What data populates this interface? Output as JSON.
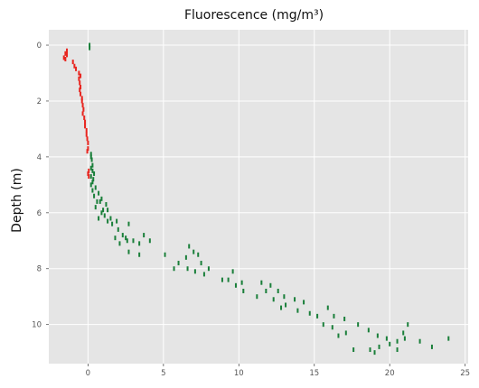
{
  "chart_data": {
    "type": "scatter",
    "title": "Fluorescence (mg/m³)",
    "xlabel": "",
    "ylabel": "Depth (m)",
    "xlim": [
      -2.6,
      25.2
    ],
    "ylim": [
      11.4,
      -0.55
    ],
    "y_inverted": true,
    "x_ticks": [
      0,
      5,
      10,
      15,
      20,
      25
    ],
    "y_ticks": [
      0,
      2,
      4,
      6,
      8,
      10
    ],
    "grid": true,
    "colors": {
      "plot_bg": "#e5e5e5",
      "grid": "#ffffff",
      "red": "#e8251f",
      "green": "#1a7f3a"
    },
    "series": [
      {
        "color": "#e8251f",
        "points": [
          [
            -1.4,
            0.2
          ],
          [
            -1.5,
            0.3
          ],
          [
            -1.4,
            0.35
          ],
          [
            -1.6,
            0.45
          ],
          [
            -1.5,
            0.5
          ],
          [
            -1.0,
            0.6
          ],
          [
            -0.9,
            0.75
          ],
          [
            -0.8,
            0.85
          ],
          [
            -0.6,
            1.0
          ],
          [
            -0.5,
            1.1
          ],
          [
            -0.6,
            1.2
          ],
          [
            -0.55,
            1.35
          ],
          [
            -0.5,
            1.5
          ],
          [
            -0.55,
            1.6
          ],
          [
            -0.5,
            1.75
          ],
          [
            -0.4,
            1.9
          ],
          [
            -0.4,
            2.0
          ],
          [
            -0.35,
            2.15
          ],
          [
            -0.3,
            2.3
          ],
          [
            -0.35,
            2.45
          ],
          [
            -0.25,
            2.6
          ],
          [
            -0.2,
            2.75
          ],
          [
            -0.2,
            2.9
          ],
          [
            -0.1,
            3.05
          ],
          [
            -0.1,
            3.2
          ],
          [
            -0.05,
            3.35
          ],
          [
            0.0,
            3.5
          ],
          [
            0.0,
            3.7
          ],
          [
            -0.05,
            3.8
          ],
          [
            0.05,
            4.5
          ],
          [
            0.0,
            4.6
          ],
          [
            0.05,
            4.7
          ]
        ]
      },
      {
        "color": "#1a7f3a",
        "points": [
          [
            0.1,
            0.0
          ],
          [
            0.1,
            0.1
          ],
          [
            0.2,
            3.9
          ],
          [
            0.2,
            4.0
          ],
          [
            0.25,
            4.1
          ],
          [
            0.3,
            4.3
          ],
          [
            0.2,
            4.4
          ],
          [
            0.3,
            4.5
          ],
          [
            0.4,
            4.6
          ],
          [
            0.2,
            4.7
          ],
          [
            0.35,
            4.8
          ],
          [
            0.3,
            4.9
          ],
          [
            0.2,
            5.0
          ],
          [
            0.5,
            5.1
          ],
          [
            0.3,
            5.2
          ],
          [
            0.7,
            5.3
          ],
          [
            0.4,
            5.4
          ],
          [
            0.9,
            5.5
          ],
          [
            0.8,
            5.6
          ],
          [
            0.6,
            5.6
          ],
          [
            1.2,
            5.7
          ],
          [
            0.5,
            5.8
          ],
          [
            1.0,
            5.9
          ],
          [
            1.3,
            5.9
          ],
          [
            0.9,
            6.0
          ],
          [
            1.1,
            6.1
          ],
          [
            0.7,
            6.2
          ],
          [
            1.5,
            6.2
          ],
          [
            1.9,
            6.3
          ],
          [
            1.3,
            6.3
          ],
          [
            1.6,
            6.4
          ],
          [
            2.7,
            6.4
          ],
          [
            2.0,
            6.6
          ],
          [
            2.3,
            6.8
          ],
          [
            2.5,
            6.9
          ],
          [
            1.8,
            6.9
          ],
          [
            2.6,
            7.0
          ],
          [
            2.1,
            7.1
          ],
          [
            3.0,
            7.0
          ],
          [
            3.4,
            7.1
          ],
          [
            3.7,
            6.8
          ],
          [
            4.1,
            7.0
          ],
          [
            2.7,
            7.4
          ],
          [
            3.4,
            7.5
          ],
          [
            5.1,
            7.5
          ],
          [
            6.7,
            7.2
          ],
          [
            7.0,
            7.4
          ],
          [
            6.5,
            7.6
          ],
          [
            7.3,
            7.5
          ],
          [
            7.5,
            7.8
          ],
          [
            6.0,
            7.8
          ],
          [
            5.7,
            8.0
          ],
          [
            6.6,
            8.0
          ],
          [
            7.1,
            8.1
          ],
          [
            7.7,
            8.2
          ],
          [
            8.0,
            8.0
          ],
          [
            9.6,
            8.1
          ],
          [
            9.3,
            8.4
          ],
          [
            8.9,
            8.4
          ],
          [
            9.8,
            8.6
          ],
          [
            10.2,
            8.5
          ],
          [
            10.3,
            8.8
          ],
          [
            11.5,
            8.5
          ],
          [
            11.8,
            8.8
          ],
          [
            12.1,
            8.6
          ],
          [
            12.6,
            8.8
          ],
          [
            11.2,
            9.0
          ],
          [
            12.3,
            9.1
          ],
          [
            13.0,
            9.0
          ],
          [
            13.7,
            9.1
          ],
          [
            13.1,
            9.3
          ],
          [
            13.9,
            9.5
          ],
          [
            14.3,
            9.2
          ],
          [
            12.8,
            9.4
          ],
          [
            14.7,
            9.6
          ],
          [
            15.2,
            9.7
          ],
          [
            15.9,
            9.4
          ],
          [
            16.3,
            9.7
          ],
          [
            15.6,
            10.0
          ],
          [
            16.2,
            10.1
          ],
          [
            17.0,
            9.8
          ],
          [
            17.1,
            10.3
          ],
          [
            16.6,
            10.4
          ],
          [
            17.9,
            10.0
          ],
          [
            18.6,
            10.2
          ],
          [
            19.2,
            10.4
          ],
          [
            19.8,
            10.5
          ],
          [
            20.0,
            10.7
          ],
          [
            20.5,
            10.6
          ],
          [
            21.0,
            10.5
          ],
          [
            20.9,
            10.3
          ],
          [
            21.2,
            10.0
          ],
          [
            19.3,
            10.8
          ],
          [
            18.7,
            10.9
          ],
          [
            19.0,
            11.0
          ],
          [
            17.6,
            10.9
          ],
          [
            20.5,
            10.9
          ],
          [
            22.0,
            10.6
          ],
          [
            22.8,
            10.8
          ],
          [
            23.9,
            10.5
          ]
        ]
      }
    ]
  }
}
